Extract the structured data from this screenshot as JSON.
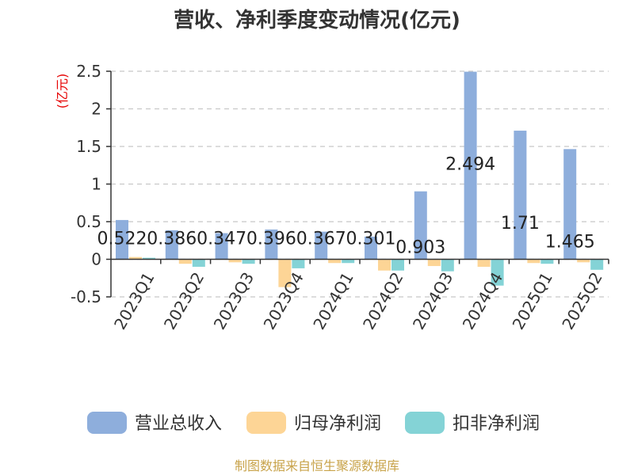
{
  "chart_data": {
    "type": "bar",
    "title": "营收、净利季度变动情况(亿元)",
    "ylabel": "(亿元)",
    "ylim": [
      -0.5,
      2.5
    ],
    "yticks": [
      2.5,
      2,
      1.5,
      1,
      0.5,
      0,
      -0.5
    ],
    "ytick_labels": [
      "2.5",
      "2",
      "1.5",
      "1",
      "0.5",
      "0",
      "-0.5"
    ],
    "categories": [
      "2023Q1",
      "2023Q2",
      "2023Q3",
      "2023Q4",
      "2024Q1",
      "2024Q2",
      "2024Q3",
      "2024Q4",
      "2025Q1",
      "2025Q2"
    ],
    "series": [
      {
        "name": "营业总收入",
        "color": "#8eaedc",
        "values": [
          0.522,
          0.386,
          0.347,
          0.396,
          0.367,
          0.301,
          0.903,
          2.494,
          1.71,
          1.465
        ],
        "labels": [
          "0.522",
          "0.386",
          "0.347",
          "0.396",
          "0.367",
          "0.301",
          "0.903",
          "2.494",
          "1.71",
          "1.465"
        ]
      },
      {
        "name": "归母净利润",
        "color": "#fdd596",
        "values": [
          0.03,
          -0.06,
          -0.04,
          -0.37,
          -0.05,
          -0.15,
          -0.09,
          -0.1,
          -0.05,
          -0.04
        ]
      },
      {
        "name": "扣非净利润",
        "color": "#84d3d6",
        "values": [
          0.02,
          -0.1,
          -0.06,
          -0.12,
          -0.05,
          -0.15,
          -0.16,
          -0.35,
          -0.06,
          -0.14
        ]
      }
    ],
    "grid": true,
    "legend_position": "bottom"
  },
  "source": "制图数据来自恒生聚源数据库"
}
